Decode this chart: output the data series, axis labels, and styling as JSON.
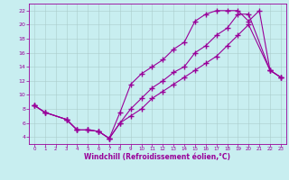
{
  "title": "",
  "xlabel": "Windchill (Refroidissement éolien,°C)",
  "ylabel": "",
  "background_color": "#c8eef0",
  "line_color": "#990099",
  "grid_color": "#aacccc",
  "xlim": [
    -0.5,
    23.5
  ],
  "ylim": [
    3.0,
    23.0
  ],
  "xticks": [
    0,
    1,
    2,
    3,
    4,
    5,
    6,
    7,
    8,
    9,
    10,
    11,
    12,
    13,
    14,
    15,
    16,
    17,
    18,
    19,
    20,
    21,
    22,
    23
  ],
  "yticks": [
    4,
    6,
    8,
    10,
    12,
    14,
    16,
    18,
    20,
    22
  ],
  "curve1_x": [
    0,
    1,
    3,
    4,
    5,
    6,
    7,
    8,
    9,
    10,
    11,
    12,
    13,
    14,
    15,
    16,
    17,
    18,
    19,
    20,
    21,
    22,
    23
  ],
  "curve1_y": [
    8.5,
    7.5,
    6.5,
    5.0,
    5.0,
    4.8,
    3.8,
    7.5,
    11.5,
    13.0,
    14.0,
    15.0,
    16.5,
    17.5,
    20.5,
    21.5,
    22.0,
    22.0,
    22.0,
    20.5,
    22.0,
    13.5,
    12.5
  ],
  "curve2_x": [
    0,
    1,
    3,
    4,
    5,
    6,
    7,
    8,
    9,
    10,
    11,
    12,
    13,
    14,
    15,
    16,
    17,
    18,
    19,
    20,
    22,
    23
  ],
  "curve2_y": [
    8.5,
    7.5,
    6.5,
    5.0,
    5.0,
    4.8,
    3.8,
    6.0,
    8.0,
    9.5,
    11.0,
    12.0,
    13.2,
    14.0,
    16.0,
    17.0,
    18.5,
    19.5,
    21.5,
    21.5,
    13.5,
    12.5
  ],
  "curve3_x": [
    0,
    1,
    3,
    4,
    5,
    6,
    7,
    8,
    9,
    10,
    11,
    12,
    13,
    14,
    15,
    16,
    17,
    18,
    19,
    20,
    22,
    23
  ],
  "curve3_y": [
    8.5,
    7.5,
    6.5,
    5.0,
    5.0,
    4.8,
    3.8,
    6.0,
    7.0,
    8.0,
    9.5,
    10.5,
    11.5,
    12.5,
    13.5,
    14.5,
    15.5,
    17.0,
    18.5,
    20.0,
    13.5,
    12.5
  ]
}
